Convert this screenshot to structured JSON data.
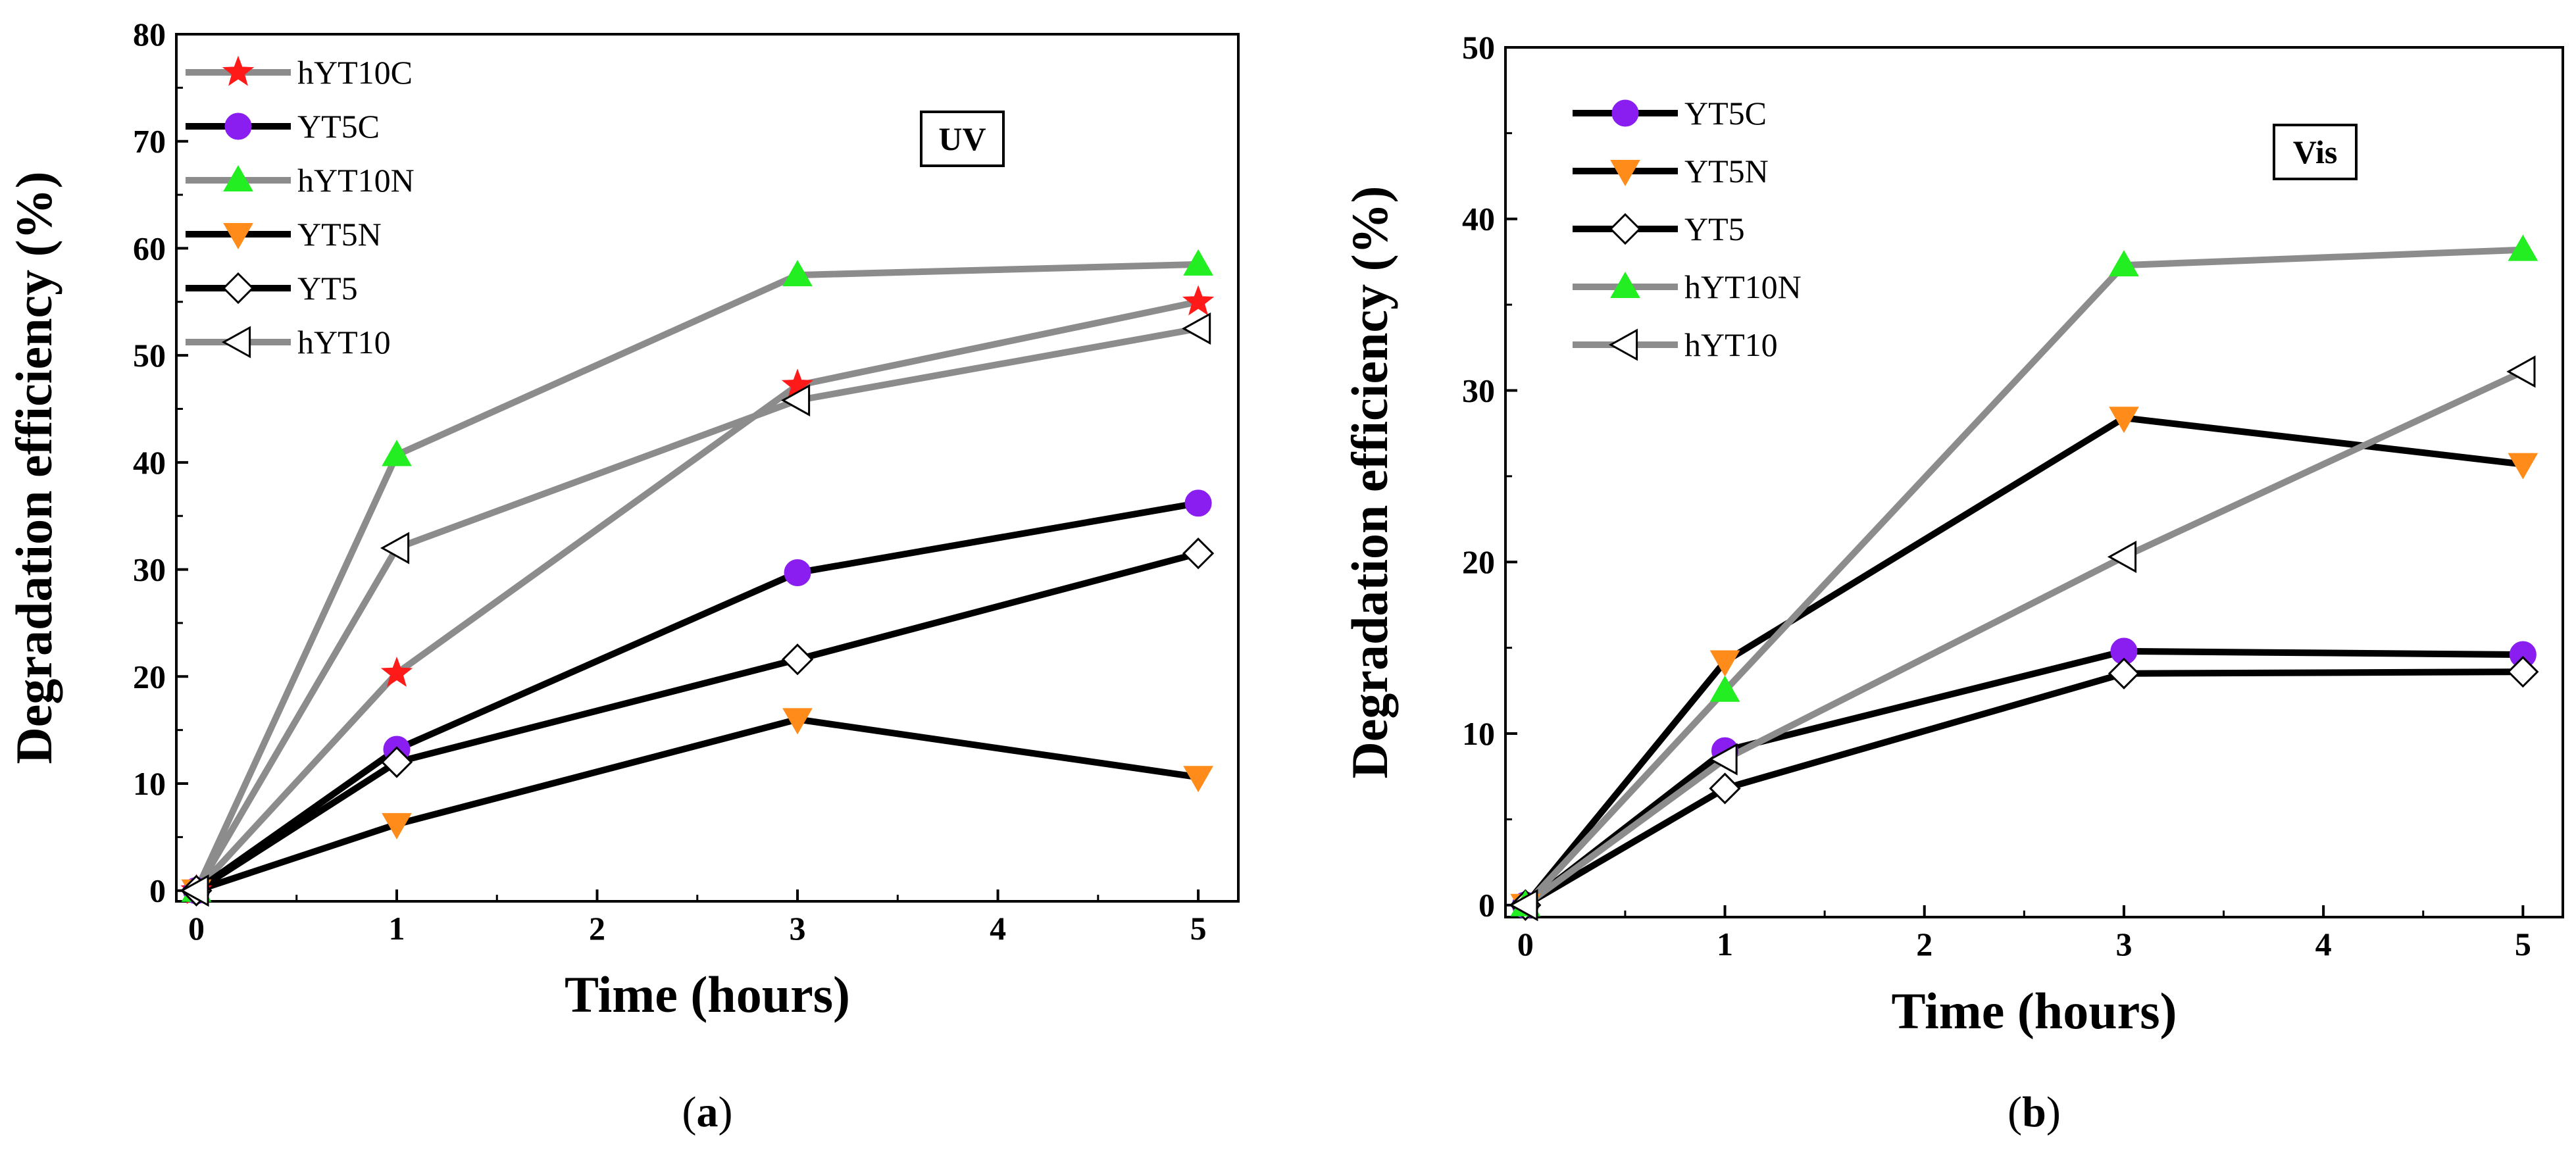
{
  "chart_data": [
    {
      "type": "line",
      "panel_label": "(a)",
      "panel_letter": "a",
      "condition_label": "UV",
      "xlabel": "Time (hours)",
      "ylabel": "Degradation efficiency (%)",
      "xlim": [
        -0.1,
        5.2
      ],
      "ylim": [
        -1,
        80
      ],
      "xticks": [
        0,
        1,
        2,
        3,
        4,
        5
      ],
      "yticks": [
        0,
        10,
        20,
        30,
        40,
        50,
        60,
        70,
        80
      ],
      "x": [
        0,
        1,
        3,
        5
      ],
      "legend_position": "top-left",
      "series": [
        {
          "name": "hYT10C",
          "line_color": "#8c8c8c",
          "marker": "star",
          "marker_color": "#ff1a1a",
          "values": [
            0,
            20.3,
            47.2,
            55.0
          ]
        },
        {
          "name": "YT5C",
          "line_color": "#000000",
          "marker": "circle",
          "marker_color": "#8a1ef0",
          "values": [
            0,
            13.2,
            29.7,
            36.2
          ]
        },
        {
          "name": "hYT10N",
          "line_color": "#8c8c8c",
          "marker": "triangle-up",
          "marker_color": "#22ee22",
          "values": [
            0,
            40.7,
            57.5,
            58.5
          ]
        },
        {
          "name": "YT5N",
          "line_color": "#000000",
          "marker": "triangle-down",
          "marker_color": "#ff8c1a",
          "values": [
            0,
            6.2,
            16.0,
            10.6
          ]
        },
        {
          "name": "YT5",
          "line_color": "#000000",
          "marker": "diamond",
          "marker_color": "#ffffff",
          "values": [
            0,
            12.0,
            21.6,
            31.5
          ]
        },
        {
          "name": "hYT10",
          "line_color": "#8c8c8c",
          "marker": "triangle-left",
          "marker_color": "#ffffff",
          "values": [
            0,
            32.0,
            45.8,
            52.5
          ]
        }
      ]
    },
    {
      "type": "line",
      "panel_label": "(b)",
      "panel_letter": "b",
      "condition_label": "Vis",
      "xlabel": "Time (hours)",
      "ylabel": "Degradation efficiency (%)",
      "xlim": [
        -0.1,
        5.2
      ],
      "ylim": [
        -0.7,
        50
      ],
      "xticks": [
        0,
        1,
        2,
        3,
        4,
        5
      ],
      "yticks": [
        0,
        10,
        20,
        30,
        40,
        50
      ],
      "x": [
        0,
        1,
        3,
        5
      ],
      "legend_position": "top-left",
      "series": [
        {
          "name": "YT5C",
          "line_color": "#000000",
          "marker": "circle",
          "marker_color": "#8a1ef0",
          "values": [
            0,
            9.0,
            14.8,
            14.6
          ]
        },
        {
          "name": "YT5N",
          "line_color": "#000000",
          "marker": "triangle-down",
          "marker_color": "#ff8c1a",
          "values": [
            0,
            14.2,
            28.4,
            25.7
          ]
        },
        {
          "name": "YT5",
          "line_color": "#000000",
          "marker": "diamond",
          "marker_color": "#ffffff",
          "values": [
            0,
            6.8,
            13.5,
            13.6
          ]
        },
        {
          "name": "hYT10N",
          "line_color": "#8c8c8c",
          "marker": "triangle-up",
          "marker_color": "#22ee22",
          "values": [
            0,
            12.5,
            37.3,
            38.2
          ]
        },
        {
          "name": "hYT10",
          "line_color": "#8c8c8c",
          "marker": "triangle-left",
          "marker_color": "#ffffff",
          "values": [
            0,
            8.5,
            20.3,
            31.1
          ]
        }
      ]
    }
  ]
}
